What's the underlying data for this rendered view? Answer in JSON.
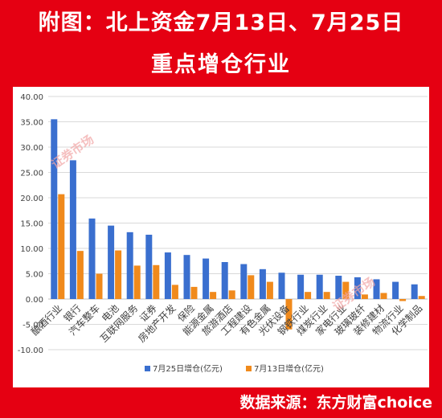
{
  "header": {
    "title_line1": "附图：北上资金7月13日、7月25日",
    "title_line2": "重点增仓行业"
  },
  "footer": {
    "source": "数据来源：东方财富choice"
  },
  "watermark": {
    "text": "证券市场"
  },
  "colors": {
    "frame": "#e50012",
    "series1": "#3a6fcf",
    "series2": "#f08a1c",
    "grid": "#d9d9d9",
    "axis_text": "#404040"
  },
  "chart_data": {
    "type": "bar",
    "title": "",
    "xlabel": "",
    "ylabel": "",
    "ylim": [
      -10,
      40
    ],
    "yticks": [
      "40.00",
      "35.00",
      "30.00",
      "25.00",
      "20.00",
      "15.00",
      "10.00",
      "5.00",
      "0.00",
      "-5.00",
      "-10.00"
    ],
    "ytick_values": [
      40,
      35,
      30,
      25,
      20,
      15,
      10,
      5,
      0,
      -5,
      -10
    ],
    "grid": true,
    "legend_position": "bottom",
    "categories": [
      "酿酒行业",
      "银行",
      "汽车整车",
      "电池",
      "互联网服务",
      "证券",
      "房地产开发",
      "保险",
      "能源金属",
      "旅游酒店",
      "工程建设",
      "有色金属",
      "光伏设备",
      "钢铁行业",
      "煤炭行业",
      "家电行业",
      "玻璃玻纤",
      "装修建材",
      "物流行业",
      "化学制品"
    ],
    "series": [
      {
        "name": "7月25日增仓(亿元)",
        "values": [
          35.5,
          27.4,
          15.9,
          14.5,
          13.2,
          12.7,
          9.2,
          8.7,
          8.0,
          7.3,
          6.9,
          5.9,
          5.2,
          4.8,
          4.8,
          4.6,
          4.3,
          3.9,
          3.4,
          2.9
        ]
      },
      {
        "name": "7月13日增仓(亿元)",
        "values": [
          20.7,
          9.5,
          5.0,
          9.6,
          6.6,
          6.7,
          2.8,
          2.4,
          1.4,
          1.7,
          4.7,
          3.4,
          -6.0,
          1.4,
          1.4,
          3.4,
          0.9,
          1.2,
          -0.4,
          0.6
        ]
      }
    ]
  }
}
